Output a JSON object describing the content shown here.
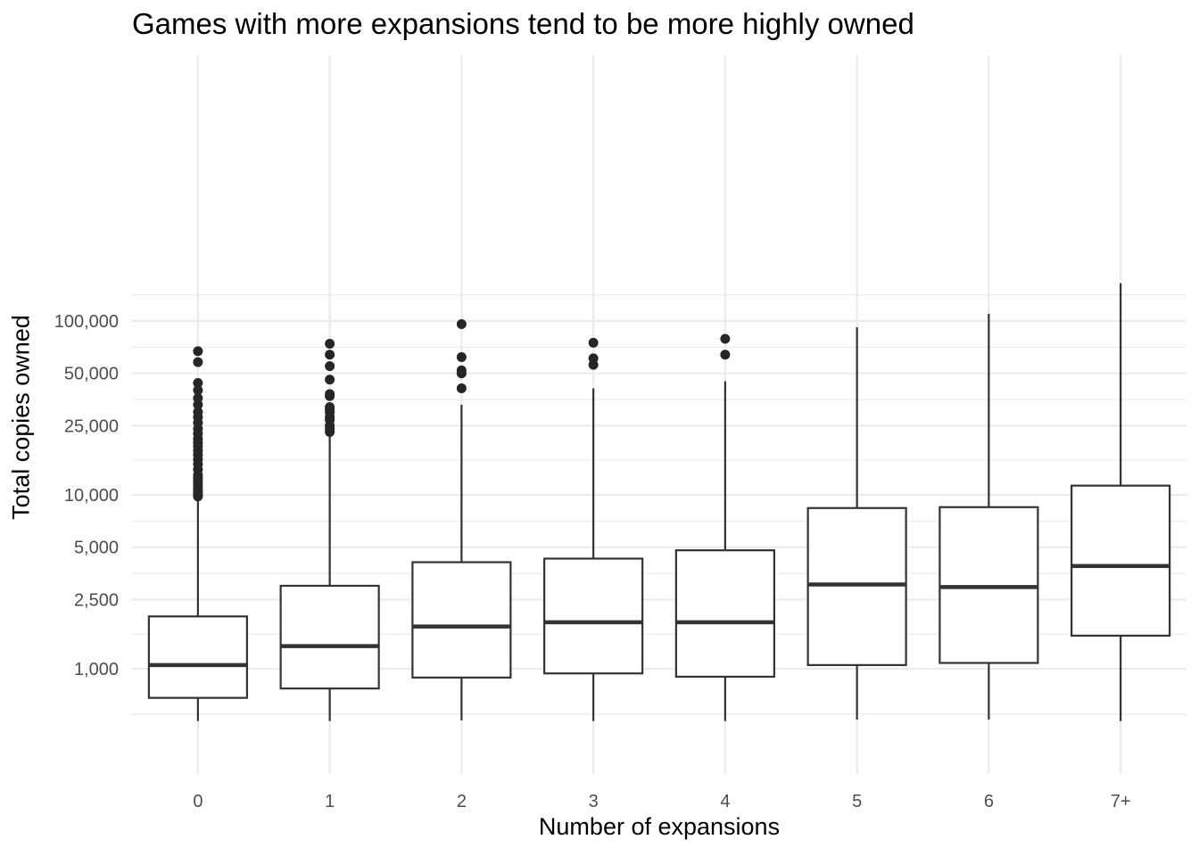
{
  "chart_data": {
    "type": "boxplot",
    "title": "Games with more expansions tend to be more highly owned",
    "xlabel": "Number of expansions",
    "ylabel": "Total copies owned",
    "y_scale": "log10",
    "ylim": [
      300,
      220000
    ],
    "y_ticks": [
      1000,
      2500,
      5000,
      10000,
      25000,
      50000,
      100000
    ],
    "y_tick_labels": [
      "1,000",
      "2,500",
      "5,000",
      "10,000",
      "25,000",
      "50,000",
      "100,000"
    ],
    "grid": true,
    "legend": "none",
    "colors": {
      "box_stroke": "#333333",
      "point": "#262626",
      "grid": "#ebebeb",
      "tick_text": "#4d4d4d"
    },
    "categories": [
      "0",
      "1",
      "2",
      "3",
      "4",
      "5",
      "6",
      "7+"
    ],
    "boxes": [
      {
        "category": "0",
        "whisker_low": 500,
        "q1": 680,
        "median": 1050,
        "q3": 2000,
        "whisker_high": 9700,
        "outliers": [
          9800,
          10000,
          10300,
          10600,
          11000,
          11500,
          12000,
          12500,
          13000,
          14000,
          15000,
          16000,
          17000,
          18000,
          19000,
          20000,
          21000,
          22500,
          24000,
          26000,
          28000,
          30000,
          33000,
          36000,
          40000,
          44000,
          58000,
          67000
        ]
      },
      {
        "category": "1",
        "whisker_low": 500,
        "q1": 770,
        "median": 1350,
        "q3": 3000,
        "whisker_high": 22000,
        "outliers": [
          23000,
          24000,
          25000,
          27000,
          28000,
          30000,
          31000,
          32000,
          37000,
          38000,
          46000,
          55000,
          64000,
          74000
        ]
      },
      {
        "category": "2",
        "whisker_low": 505,
        "q1": 890,
        "median": 1750,
        "q3": 4100,
        "whisker_high": 33000,
        "outliers": [
          41000,
          50000,
          52000,
          62000,
          96000
        ]
      },
      {
        "category": "3",
        "whisker_low": 500,
        "q1": 940,
        "median": 1850,
        "q3": 4300,
        "whisker_high": 41000,
        "outliers": [
          56000,
          61000,
          75000
        ]
      },
      {
        "category": "4",
        "whisker_low": 500,
        "q1": 900,
        "median": 1850,
        "q3": 4800,
        "whisker_high": 45000,
        "outliers": [
          64000,
          79000
        ]
      },
      {
        "category": "5",
        "whisker_low": 510,
        "q1": 1050,
        "median": 3050,
        "q3": 8400,
        "whisker_high": 92000,
        "outliers": []
      },
      {
        "category": "6",
        "whisker_low": 510,
        "q1": 1080,
        "median": 2950,
        "q3": 8500,
        "whisker_high": 110000,
        "outliers": []
      },
      {
        "category": "7+",
        "whisker_low": 500,
        "q1": 1550,
        "median": 3900,
        "q3": 11300,
        "whisker_high": 165000,
        "outliers": []
      }
    ]
  }
}
